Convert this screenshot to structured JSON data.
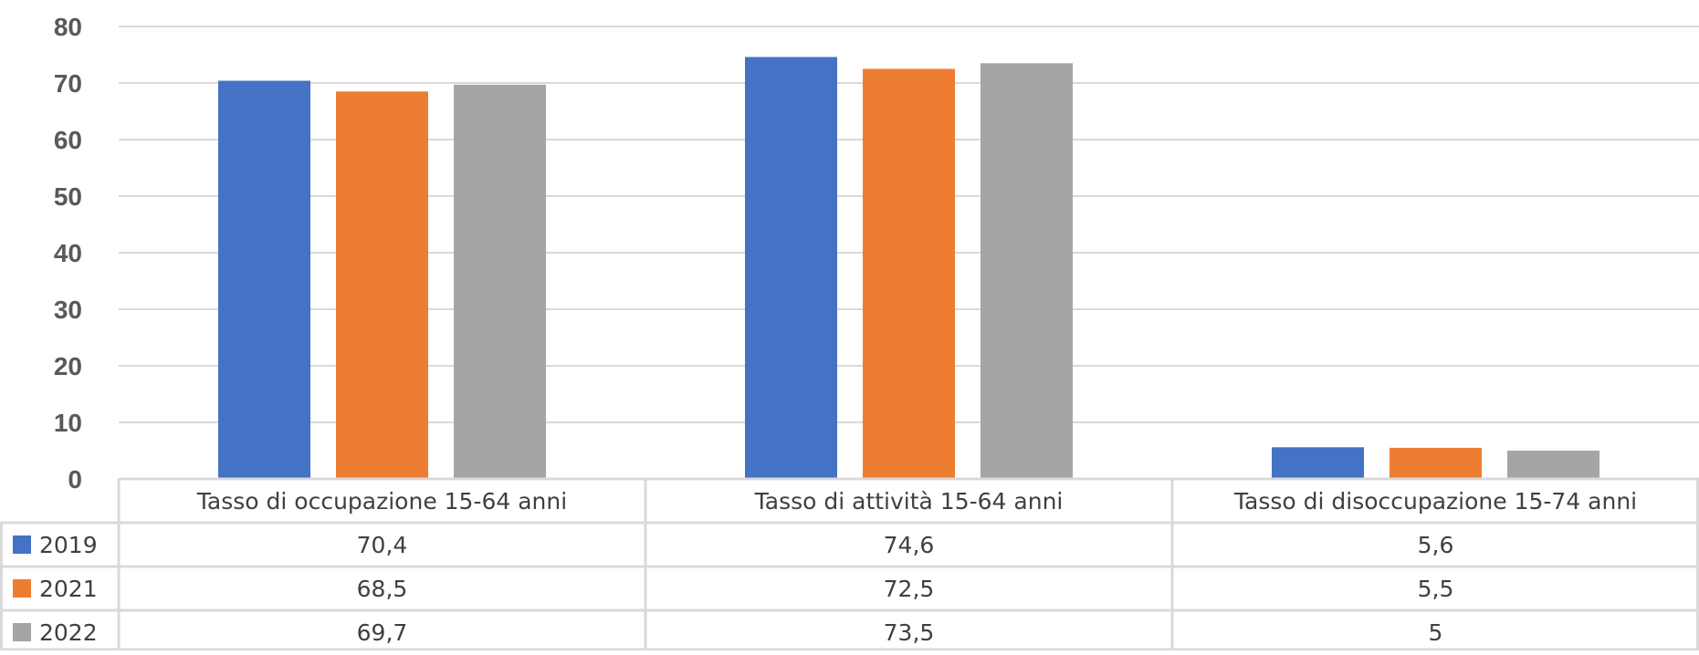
{
  "chart_data": {
    "type": "bar",
    "title": "",
    "xlabel": "",
    "ylabel": "",
    "ylim": [
      0,
      80
    ],
    "yticks": [
      0,
      10,
      20,
      30,
      40,
      50,
      60,
      70,
      80
    ],
    "grid": true,
    "legend": "data-table-left",
    "categories": [
      "Tasso di occupazione 15-64 anni",
      "Tasso di attività 15-64 anni",
      "Tasso di disoccupazione 15-74 anni"
    ],
    "series": [
      {
        "name": "2019",
        "color": "#4472C4",
        "values": [
          70.4,
          74.6,
          5.6
        ],
        "labels": [
          "70,4",
          "74,6",
          "5,6"
        ]
      },
      {
        "name": "2021",
        "color": "#ED7D31",
        "values": [
          68.5,
          72.5,
          5.5
        ],
        "labels": [
          "68,5",
          "72,5",
          "5,5"
        ]
      },
      {
        "name": "2022",
        "color": "#A5A5A5",
        "values": [
          69.7,
          73.5,
          5.0
        ],
        "labels": [
          "69,7",
          "73,5",
          "5"
        ]
      }
    ]
  }
}
